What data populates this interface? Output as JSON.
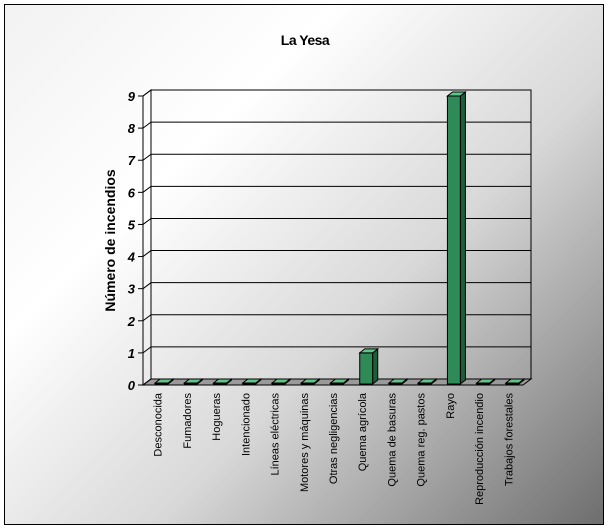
{
  "chart_data": {
    "type": "bar",
    "title": "La Yesa",
    "xlabel": "",
    "ylabel": "Número de incendios",
    "ylim": [
      0,
      9
    ],
    "yticks": [
      0,
      1,
      2,
      3,
      4,
      5,
      6,
      7,
      8,
      9
    ],
    "categories": [
      "Desconocida",
      "Fumadores",
      "Hogueras",
      "Intencionado",
      "Líneas eléctricas",
      "Motores y máquinas",
      "Otras negligencias",
      "Quema agrícola",
      "Quema de basuras",
      "Quema reg. pastos",
      "Rayo",
      "Reproducción incendio",
      "Trabajos forestales"
    ],
    "values": [
      0,
      0,
      0,
      0,
      0,
      0,
      0,
      1,
      0,
      0,
      9,
      0,
      0
    ],
    "grid": true,
    "legend": "none",
    "bar_color": "#2e8b57"
  }
}
